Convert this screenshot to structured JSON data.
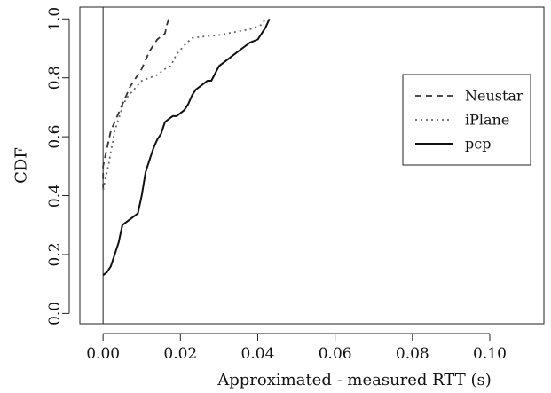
{
  "chart_data": {
    "type": "line",
    "title": "",
    "xlabel": "Approximated - measured RTT (s)",
    "ylabel": "CDF",
    "xlim": [
      -0.006,
      0.114
    ],
    "ylim": [
      -0.035,
      1.04
    ],
    "x_ticks": [
      0.0,
      0.02,
      0.04,
      0.06,
      0.08,
      0.1
    ],
    "x_tick_labels": [
      "0.00",
      "0.02",
      "0.04",
      "0.06",
      "0.08",
      "0.10"
    ],
    "y_ticks": [
      0.0,
      0.2,
      0.4,
      0.6,
      0.8,
      1.0
    ],
    "y_tick_labels": [
      "0.0",
      "0.2",
      "0.4",
      "0.6",
      "0.8",
      "1.0"
    ],
    "reference_line_x": 0.0,
    "grid": false,
    "legend_position": "right",
    "series": [
      {
        "name": "Neustar",
        "style": "dashed",
        "color": "#333333",
        "x": [
          0.0,
          0.0,
          0.0005,
          0.001,
          0.0015,
          0.002,
          0.003,
          0.004,
          0.005,
          0.006,
          0.007,
          0.008,
          0.009,
          0.01,
          0.011,
          0.012,
          0.013,
          0.014,
          0.015,
          0.016,
          0.0165,
          0.017
        ],
        "y": [
          0.42,
          0.5,
          0.53,
          0.56,
          0.59,
          0.62,
          0.65,
          0.68,
          0.71,
          0.74,
          0.77,
          0.79,
          0.81,
          0.83,
          0.86,
          0.89,
          0.91,
          0.93,
          0.94,
          0.95,
          0.98,
          1.0
        ]
      },
      {
        "name": "iPlane",
        "style": "dotted",
        "color": "#666666",
        "x": [
          0.0,
          0.0005,
          0.001,
          0.0015,
          0.002,
          0.0025,
          0.003,
          0.004,
          0.005,
          0.006,
          0.008,
          0.01,
          0.012,
          0.014,
          0.016,
          0.0175,
          0.019,
          0.021,
          0.023,
          0.026,
          0.03,
          0.034,
          0.038,
          0.041,
          0.042
        ],
        "y": [
          0.42,
          0.45,
          0.48,
          0.51,
          0.55,
          0.58,
          0.62,
          0.66,
          0.7,
          0.73,
          0.76,
          0.79,
          0.8,
          0.81,
          0.83,
          0.84,
          0.88,
          0.91,
          0.935,
          0.94,
          0.945,
          0.955,
          0.965,
          0.98,
          1.0
        ]
      },
      {
        "name": "pcp",
        "style": "solid",
        "color": "#111111",
        "x": [
          0.0,
          0.001,
          0.002,
          0.003,
          0.004,
          0.005,
          0.007,
          0.008,
          0.009,
          0.01,
          0.011,
          0.012,
          0.013,
          0.014,
          0.015,
          0.016,
          0.017,
          0.018,
          0.019,
          0.02,
          0.021,
          0.022,
          0.023,
          0.024,
          0.025,
          0.026,
          0.027,
          0.028,
          0.03,
          0.032,
          0.034,
          0.036,
          0.038,
          0.04,
          0.041,
          0.042,
          0.043
        ],
        "y": [
          0.13,
          0.14,
          0.16,
          0.2,
          0.24,
          0.3,
          0.32,
          0.33,
          0.34,
          0.4,
          0.48,
          0.52,
          0.56,
          0.59,
          0.61,
          0.65,
          0.66,
          0.67,
          0.67,
          0.68,
          0.69,
          0.71,
          0.74,
          0.76,
          0.77,
          0.78,
          0.79,
          0.79,
          0.84,
          0.86,
          0.88,
          0.9,
          0.92,
          0.93,
          0.95,
          0.97,
          1.0
        ]
      }
    ]
  }
}
